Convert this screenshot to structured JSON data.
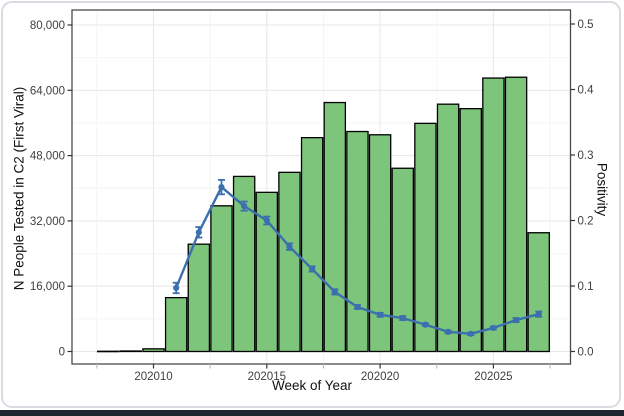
{
  "chart_data": {
    "type": "bar+line (dual axis)",
    "title": "",
    "xlabel": "Week of Year",
    "ylabel_left": "N People Tested in C2 (First Viral)",
    "ylabel_right": "Positivity",
    "x_weeks": [
      202008,
      202009,
      202010,
      202011,
      202012,
      202013,
      202014,
      202015,
      202016,
      202017,
      202018,
      202019,
      202020,
      202021,
      202022,
      202023,
      202024,
      202025,
      202026,
      202027
    ],
    "bars": {
      "name": "N People Tested in C2 (First Viral)",
      "values": [
        60,
        120,
        650,
        13200,
        26300,
        35700,
        42900,
        39000,
        43900,
        52400,
        61000,
        53900,
        53100,
        44900,
        55900,
        60600,
        59500,
        67000,
        67200,
        29100
      ]
    },
    "line": {
      "name": "Positivity",
      "weeks": [
        202011,
        202012,
        202013,
        202014,
        202015,
        202016,
        202017,
        202018,
        202019,
        202020,
        202021,
        202022,
        202023,
        202024,
        202025,
        202026,
        202027
      ],
      "values": [
        0.097,
        0.182,
        0.251,
        0.222,
        0.2,
        0.16,
        0.126,
        0.091,
        0.068,
        0.056,
        0.051,
        0.041,
        0.03,
        0.027,
        0.036,
        0.048,
        0.057
      ],
      "errors": [
        0.008,
        0.008,
        0.011,
        0.007,
        0.006,
        0.005,
        0.004,
        0.004,
        0.003,
        0.003,
        0.003,
        0.002,
        0.002,
        0.002,
        0.002,
        0.003,
        0.004
      ]
    },
    "axes": {
      "left": {
        "tick_values": [
          0,
          16000,
          32000,
          48000,
          64000,
          80000
        ],
        "tick_labels": [
          "0",
          "16,000",
          "32,000",
          "48,000",
          "64,000",
          "80,000"
        ],
        "minor_values": [
          8000,
          24000,
          40000,
          56000,
          72000
        ],
        "range": [
          0,
          80000
        ]
      },
      "right": {
        "tick_values": [
          0,
          0.1,
          0.2,
          0.3,
          0.4,
          0.5
        ],
        "tick_labels": [
          "0.0",
          "0.1",
          "0.2",
          "0.3",
          "0.4",
          "0.5"
        ],
        "range": [
          0,
          0.5
        ]
      },
      "x": {
        "major_tick_weeks": [
          202010,
          202015,
          202020,
          202025
        ],
        "major_tick_labels": [
          "202010",
          "202015",
          "202020",
          "202025"
        ],
        "minor_tick_weeks": [
          202007.5,
          202012.5,
          202017.5,
          202022.5,
          202027.5
        ]
      }
    },
    "legend_position": "none",
    "grid": true,
    "colors": {
      "bar_fill": "#7cc57a",
      "bar_stroke": "#000000",
      "line": "#3b70af",
      "panel_border": "#4a4a4a",
      "grid_major": "#e9e9e9",
      "grid_minor": "#f4f4f4",
      "tick_label": "#3f3f3f",
      "minor_tick": "#bcbcbc",
      "axis_title": "#111111",
      "card_border": "#d8dce1",
      "bottom_strip": "#1f2630"
    }
  }
}
